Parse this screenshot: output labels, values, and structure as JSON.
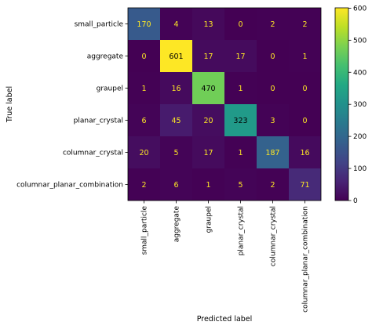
{
  "chart_data": {
    "type": "heatmap",
    "title": "",
    "xlabel": "Predicted label",
    "ylabel": "True label",
    "x_categories": [
      "small_particle",
      "aggregate",
      "graupel",
      "planar_crystal",
      "columnar_crystal",
      "columnar_planar_combination"
    ],
    "y_categories": [
      "small_particle",
      "aggregate",
      "graupel",
      "planar_crystal",
      "columnar_crystal",
      "columnar_planar_combination"
    ],
    "values": [
      [
        170,
        4,
        13,
        0,
        2,
        2
      ],
      [
        0,
        601,
        17,
        17,
        0,
        1
      ],
      [
        1,
        16,
        470,
        1,
        0,
        0
      ],
      [
        6,
        45,
        20,
        323,
        3,
        0
      ],
      [
        20,
        5,
        17,
        1,
        187,
        16
      ],
      [
        2,
        6,
        1,
        5,
        2,
        71
      ]
    ],
    "colormap": "viridis",
    "vmin": 0,
    "vmax": 601,
    "colorbar_ticks": [
      0,
      100,
      200,
      300,
      400,
      500,
      600
    ],
    "text_color_dark": "#fde725",
    "text_color_light": "#000000"
  }
}
